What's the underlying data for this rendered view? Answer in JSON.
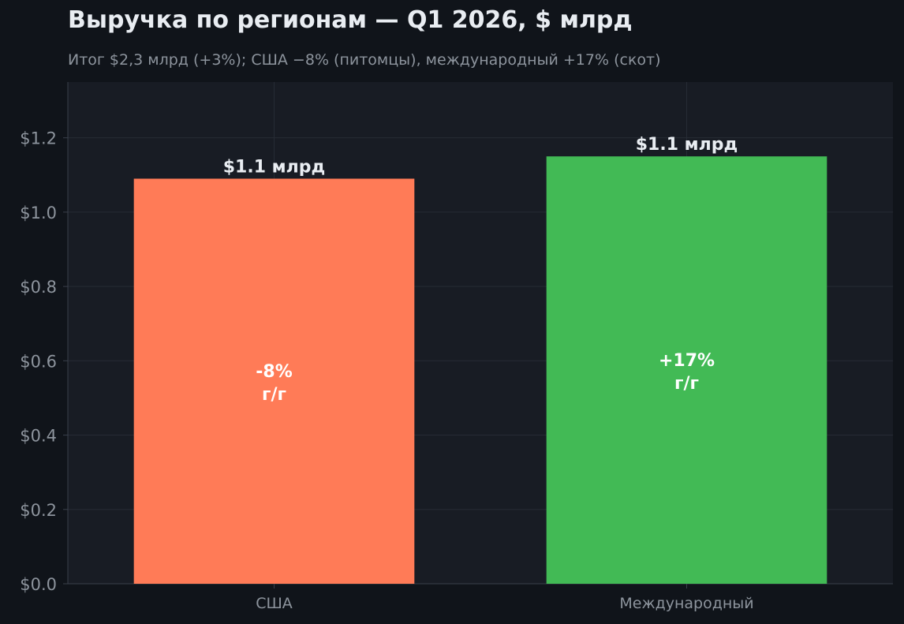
{
  "chart_data": {
    "type": "bar",
    "title": "Выручка по регионам — Q1 2026, $ млрд",
    "subtitle": "Итог $2,3 млрд (+3%); США −8% (питомцы), международный +17% (скот)",
    "xlabel": "",
    "ylabel": "",
    "categories": [
      "США",
      "Международный"
    ],
    "values": [
      1.09,
      1.15
    ],
    "value_labels": [
      "$1.1 млрд",
      "$1.1 млрд"
    ],
    "change_labels": [
      [
        "-8%",
        "г/г"
      ],
      [
        "+17%",
        "г/г"
      ]
    ],
    "colors": [
      "#ff7b57",
      "#42ba55"
    ],
    "ylim": [
      0,
      1.35
    ],
    "yticks": [
      0.0,
      0.2,
      0.4,
      0.6,
      0.8,
      1.0,
      1.2
    ],
    "ytick_labels": [
      "$0.0",
      "$0.2",
      "$0.4",
      "$0.6",
      "$0.8",
      "$1.0",
      "$1.2"
    ],
    "grid": true,
    "legend": "none"
  }
}
